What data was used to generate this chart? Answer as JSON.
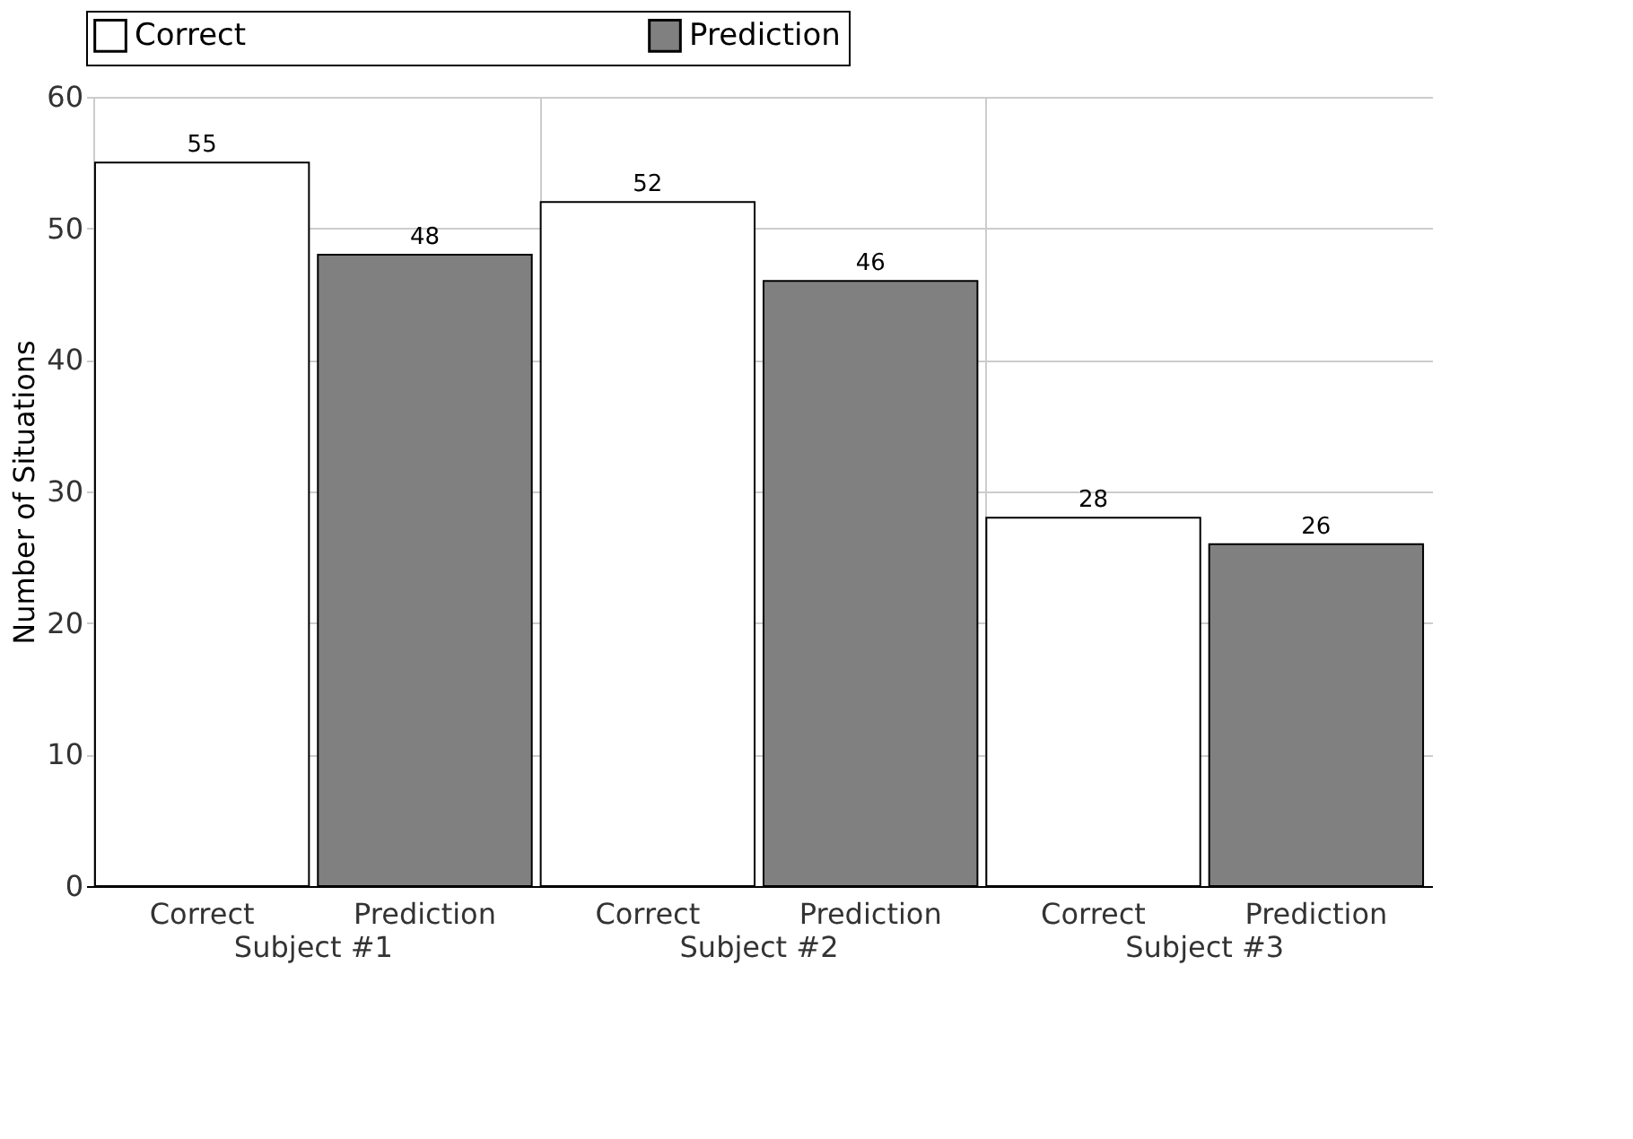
{
  "chart_data": {
    "type": "bar",
    "ylabel": "Number of Situations",
    "categories": [
      "Subject #1",
      "Subject #2",
      "Subject #3"
    ],
    "series": [
      {
        "name": "Correct",
        "color": "#ffffff",
        "values": [
          55,
          52,
          28
        ]
      },
      {
        "name": "Prediction",
        "color": "#808080",
        "values": [
          48,
          46,
          26
        ]
      }
    ],
    "ylim": [
      0,
      60
    ],
    "yticks": [
      0,
      10,
      20,
      30,
      40,
      50,
      60
    ],
    "grid": true,
    "legend": "top",
    "data_labels": true
  }
}
